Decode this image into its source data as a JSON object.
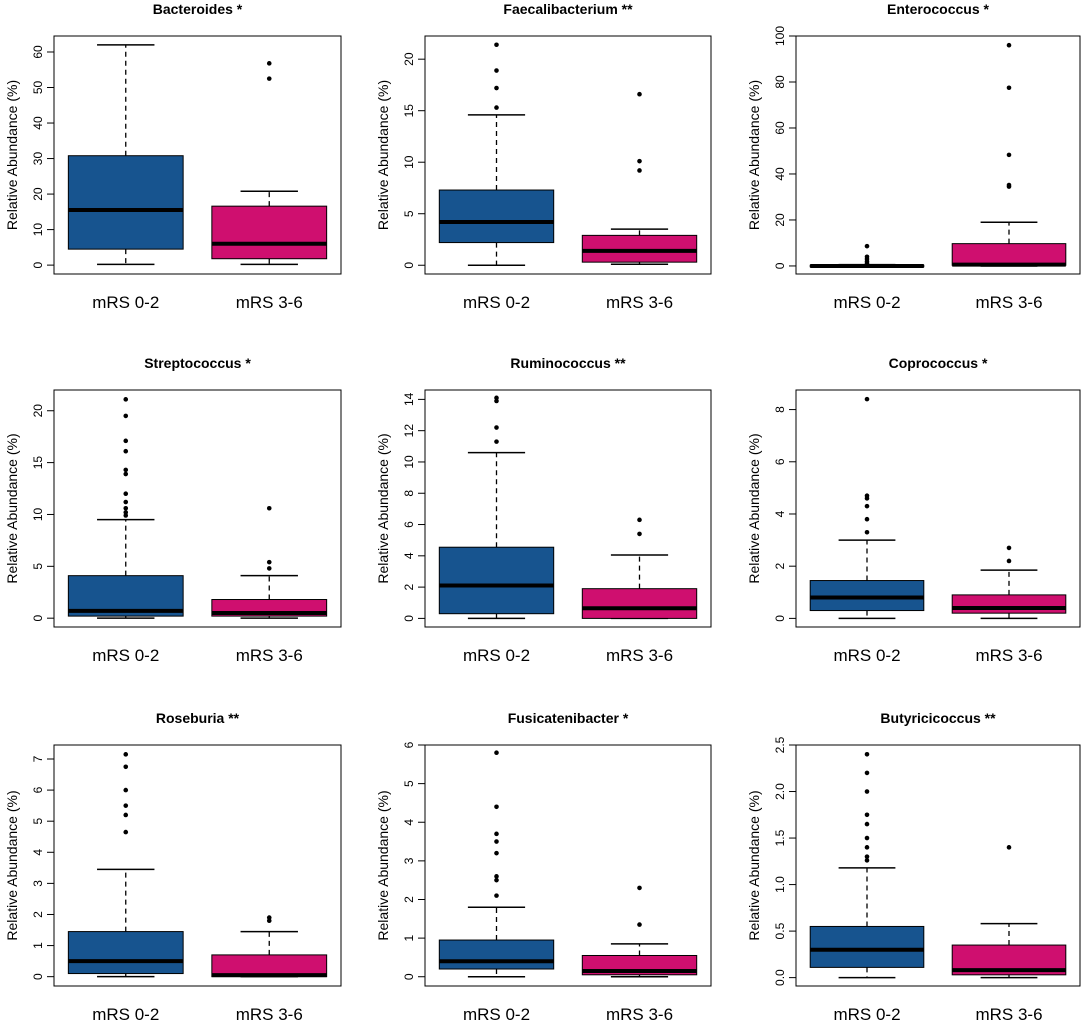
{
  "colors": {
    "group1": "#17548f",
    "group2": "#cf0f6f",
    "median": "#000000",
    "frame": "#000000"
  },
  "chart_data": [
    {
      "type": "boxplot",
      "title": "Bacteroides *",
      "ylabel": "Relative Abundance (%)",
      "categories": [
        "mRS 0-2",
        "mRS 3-6"
      ],
      "yticks": [
        "0",
        "10",
        "20",
        "30",
        "40",
        "50",
        "60"
      ],
      "ylim": [
        -2.5,
        64.5
      ],
      "boxes": [
        {
          "min": 0.2,
          "q1": 4.5,
          "median": 15.5,
          "q3": 30.8,
          "max": 62.0,
          "outliers": []
        },
        {
          "min": 0.2,
          "q1": 1.8,
          "median": 6.0,
          "q3": 16.6,
          "max": 20.8,
          "outliers": [
            52.5,
            56.8
          ]
        }
      ]
    },
    {
      "type": "boxplot",
      "title": "Faecalibacterium **",
      "ylabel": "Relative Abundance (%)",
      "categories": [
        "mRS 0-2",
        "mRS 3-6"
      ],
      "yticks": [
        "0",
        "5",
        "10",
        "15",
        "20"
      ],
      "ylim": [
        -0.85,
        22.25
      ],
      "boxes": [
        {
          "min": 0.0,
          "q1": 2.2,
          "median": 4.2,
          "q3": 7.3,
          "max": 14.6,
          "outliers": [
            15.3,
            17.2,
            18.9,
            21.4
          ]
        },
        {
          "min": 0.1,
          "q1": 0.3,
          "median": 1.4,
          "q3": 2.9,
          "max": 3.5,
          "outliers": [
            9.2,
            10.1,
            16.6
          ]
        }
      ]
    },
    {
      "type": "boxplot",
      "title": "Enterococcus *",
      "ylabel": "Relative Abundance (%)",
      "categories": [
        "mRS 0-2",
        "mRS 3-6"
      ],
      "yticks": [
        "0",
        "20",
        "40",
        "60",
        "80",
        "100"
      ],
      "ylim": [
        -3.5,
        100.0
      ],
      "boxes": [
        {
          "min": 0.0,
          "q1": 0.0,
          "median": 0.0,
          "q3": 0.3,
          "max": 0.6,
          "outliers": [
            1.2,
            2.0,
            3.0,
            4.0,
            8.6
          ]
        },
        {
          "min": 0.0,
          "q1": 0.3,
          "median": 0.6,
          "q3": 9.7,
          "max": 19.0,
          "outliers": [
            34.5,
            35.2,
            48.3,
            77.5,
            96.0
          ]
        }
      ]
    },
    {
      "type": "boxplot",
      "title": "Streptococcus *",
      "ylabel": "Relative Abundance (%)",
      "categories": [
        "mRS 0-2",
        "mRS 3-6"
      ],
      "yticks": [
        "0",
        "5",
        "10",
        "15",
        "20"
      ],
      "ylim": [
        -0.85,
        22.0
      ],
      "boxes": [
        {
          "min": 0.0,
          "q1": 0.2,
          "median": 0.7,
          "q3": 4.1,
          "max": 9.5,
          "outliers": [
            9.9,
            10.2,
            10.6,
            11.2,
            12.0,
            13.9,
            14.3,
            16.1,
            17.1,
            19.5,
            21.1
          ]
        },
        {
          "min": 0.0,
          "q1": 0.2,
          "median": 0.5,
          "q3": 1.8,
          "max": 4.1,
          "outliers": [
            4.8,
            5.4,
            10.6
          ]
        }
      ]
    },
    {
      "type": "boxplot",
      "title": "Ruminococcus **",
      "ylabel": "Relative Abundance (%)",
      "categories": [
        "mRS 0-2",
        "mRS 3-6"
      ],
      "yticks": [
        "0",
        "2",
        "4",
        "6",
        "8",
        "10",
        "12",
        "14"
      ],
      "ylim": [
        -0.55,
        14.6
      ],
      "boxes": [
        {
          "min": 0.0,
          "q1": 0.3,
          "median": 2.1,
          "q3": 4.55,
          "max": 10.6,
          "outliers": [
            11.3,
            12.2,
            13.9,
            14.1
          ]
        },
        {
          "min": 0.0,
          "q1": 0.0,
          "median": 0.65,
          "q3": 1.9,
          "max": 4.05,
          "outliers": [
            5.4,
            6.3
          ]
        }
      ]
    },
    {
      "type": "boxplot",
      "title": "Coprococcus *",
      "ylabel": "Relative Abundance (%)",
      "categories": [
        "mRS 0-2",
        "mRS 3-6"
      ],
      "yticks": [
        "0",
        "2",
        "4",
        "6",
        "8"
      ],
      "ylim": [
        -0.33,
        8.75
      ],
      "boxes": [
        {
          "min": 0.0,
          "q1": 0.3,
          "median": 0.8,
          "q3": 1.45,
          "max": 3.0,
          "outliers": [
            3.3,
            3.8,
            4.3,
            4.6,
            4.7,
            8.4
          ]
        },
        {
          "min": 0.0,
          "q1": 0.2,
          "median": 0.4,
          "q3": 0.9,
          "max": 1.85,
          "outliers": [
            2.2,
            2.7
          ]
        }
      ]
    },
    {
      "type": "boxplot",
      "title": "Roseburia **",
      "ylabel": "Relative Abundance (%)",
      "categories": [
        "mRS 0-2",
        "mRS 3-6"
      ],
      "yticks": [
        "0",
        "1",
        "2",
        "3",
        "4",
        "5",
        "6",
        "7"
      ],
      "ylim": [
        -0.3,
        7.45
      ],
      "boxes": [
        {
          "min": 0.0,
          "q1": 0.1,
          "median": 0.5,
          "q3": 1.45,
          "max": 3.45,
          "outliers": [
            4.65,
            5.2,
            5.5,
            6.0,
            6.75,
            7.15
          ]
        },
        {
          "min": 0.0,
          "q1": 0.0,
          "median": 0.05,
          "q3": 0.7,
          "max": 1.45,
          "outliers": [
            1.8,
            1.9
          ]
        }
      ]
    },
    {
      "type": "boxplot",
      "title": "Fusicatenibacter *",
      "ylabel": "Relative Abundance (%)",
      "categories": [
        "mRS 0-2",
        "mRS 3-6"
      ],
      "yticks": [
        "0",
        "1",
        "2",
        "3",
        "4",
        "5",
        "6"
      ],
      "ylim": [
        -0.24,
        6.0
      ],
      "boxes": [
        {
          "min": 0.0,
          "q1": 0.2,
          "median": 0.4,
          "q3": 0.95,
          "max": 1.8,
          "outliers": [
            2.1,
            2.5,
            2.6,
            3.2,
            3.5,
            3.7,
            4.4,
            5.8
          ]
        },
        {
          "min": 0.0,
          "q1": 0.05,
          "median": 0.15,
          "q3": 0.55,
          "max": 0.85,
          "outliers": [
            1.35,
            2.3
          ]
        }
      ]
    },
    {
      "type": "boxplot",
      "title": "Butyricicoccus **",
      "ylabel": "Relative Abundance (%)",
      "categories": [
        "mRS 0-2",
        "mRS 3-6"
      ],
      "yticks": [
        "0.0",
        "0.5",
        "1.0",
        "1.5",
        "2.0",
        "2.5"
      ],
      "ylim": [
        -0.09,
        2.5
      ],
      "boxes": [
        {
          "min": 0.0,
          "q1": 0.11,
          "median": 0.3,
          "q3": 0.55,
          "max": 1.18,
          "outliers": [
            1.26,
            1.3,
            1.4,
            1.5,
            1.65,
            1.75,
            2.0,
            2.2,
            2.4
          ]
        },
        {
          "min": 0.0,
          "q1": 0.03,
          "median": 0.08,
          "q3": 0.35,
          "max": 0.58,
          "outliers": [
            1.4
          ]
        }
      ]
    }
  ]
}
